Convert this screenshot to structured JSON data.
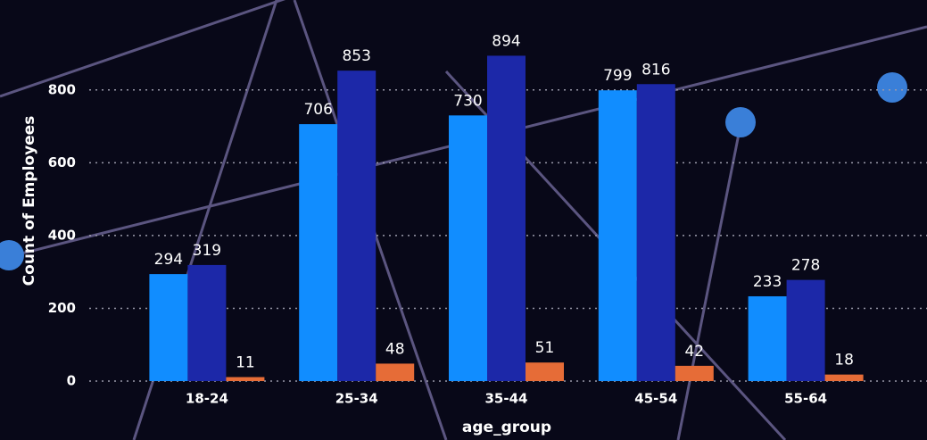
{
  "chart_data": {
    "type": "bar",
    "x_label": "age_group",
    "y_label": "Count of Employees",
    "categories": [
      "18-24",
      "25-34",
      "35-44",
      "45-54",
      "55-64"
    ],
    "series": [
      {
        "color": "#118dff",
        "values": [
          294,
          706,
          730,
          799,
          233
        ]
      },
      {
        "color": "#1c28a8",
        "values": [
          319,
          853,
          894,
          816,
          278
        ]
      },
      {
        "color": "#e66c37",
        "values": [
          11,
          48,
          51,
          42,
          18
        ]
      }
    ],
    "ylim": [
      0,
      900
    ],
    "yticks": [
      0,
      200,
      400,
      600,
      800
    ],
    "grid": true
  }
}
